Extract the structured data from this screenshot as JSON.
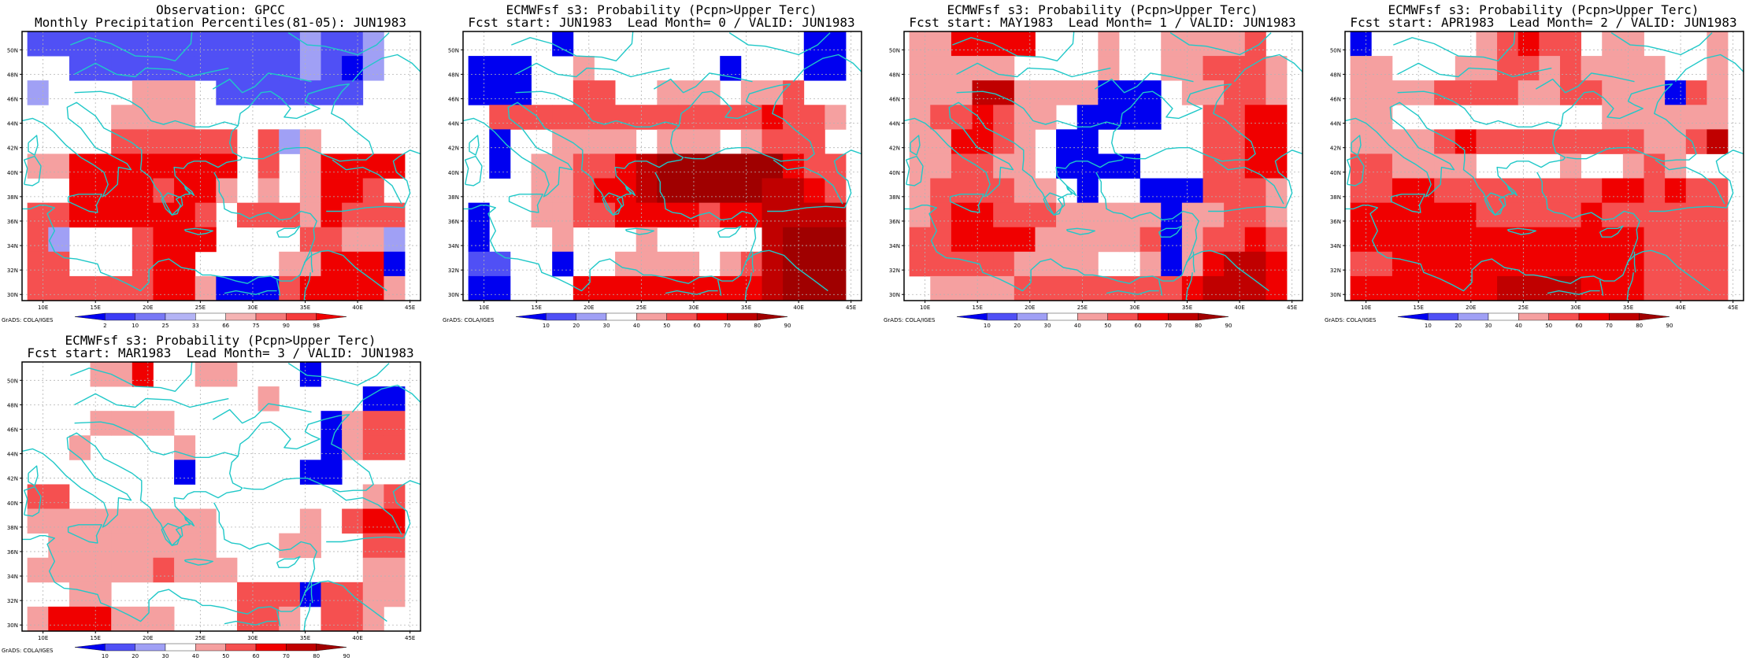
{
  "common": {
    "lat_labels": [
      "50N",
      "48N",
      "46N",
      "44N",
      "42N",
      "40N",
      "38N",
      "36N",
      "34N",
      "32N",
      "30N"
    ],
    "lon_labels": [
      "10E",
      "15E",
      "20E",
      "25E",
      "30E",
      "35E",
      "40E",
      "45E"
    ],
    "credit": "GrADS: COLA/IGES",
    "colors": {
      "w": "#ffffff",
      "b1": "#0000f0",
      "b2": "#5050f5",
      "b3": "#a0a0f5",
      "r1": "#f5a0a0",
      "r2": "#f55050",
      "r3": "#f00000",
      "r4": "#c00000",
      "r5": "#a00000",
      "coast": "#20c8c8"
    },
    "obs_scale": {
      "labels": [
        "2",
        "10",
        "25",
        "33",
        "66",
        "75",
        "90",
        "98"
      ],
      "colors": [
        "#0000f0",
        "#3c3cf5",
        "#7878f5",
        "#b4b4f5",
        "#ffffff",
        "#f5b4b4",
        "#f57878",
        "#f53c3c",
        "#f00000"
      ]
    },
    "prob_scale": {
      "labels": [
        "10",
        "20",
        "30",
        "40",
        "50",
        "60",
        "70",
        "80",
        "90"
      ],
      "colors": [
        "#0000f0",
        "#5050f5",
        "#a0a0f5",
        "#ffffff",
        "#f5a0a0",
        "#f55050",
        "#f00000",
        "#c00000",
        "#a00000"
      ]
    }
  },
  "panels": [
    {
      "title1": "Observation: GPCC",
      "title2": "Monthly Precipitation Percentiles(81-05): JUN1983",
      "scale": "obs",
      "grid": [
        "b2 b2 b2 b2 b2 b2 b2 b2 b2 b2 b2 b2 b2 b3 b2 b2 b3 w",
        "w w b2 b2 b2 b2 b2 b2 b2 b2 b2 b2 b2 b3 b2 b1 b3 w",
        "b3 w w w w r1 r1 r1 w b2 b2 b2 b2 b2 b2 b2 w w",
        "w w w w r1 r1 r1 r1 w w w w w w w w w w",
        "w w w w r2 r2 r2 r2 r2 r2 w r2 b3 r1 w w w w",
        "r1 r1 r3 r3 r3 r3 r3 r3 r3 r3 w r2 w r1 r3 r3 r3 r3",
        "w w r3 r3 r3 r3 r2 r3 r3 r1 w r1 w r1 r3 r3 r2 w",
        "r2 r2 r3 r3 r3 r3 r3 r3 r2 w r2 r2 r2 r1 r3 r2 r2 r2",
        "r2 b3 w w w r2 r3 r3 r3 w w w w r2 r2 r1 r1 b3",
        "r2 r2 w w w r2 r3 r3 w w w w r1 r1 r3 r3 r3 b1",
        "r2 r2 r2 r2 r2 r2 r3 r3 r1 b1 b1 b1 r2 r3 r3 r3 r3 r1"
      ]
    },
    {
      "title1": "ECMWFsf s3: Probability (Pcpn>Upper Terc)",
      "title2": "Fcst start: JUN1983  Lead Month= 0 / VALID: JUN1983",
      "scale": "prob",
      "grid": [
        "w w w w b1 w w w w w w w w w w w b1 b1",
        "b1 b1 b1 w w r1 w w w w w w b1 w w w b1 b1",
        "b1 b1 b1 w w r2 r2 w w r1 r1 r1 w r1 r1 r2 w w",
        "w r2 r2 r2 r2 r2 r2 r2 r2 r2 r2 r2 r2 r2 r3 r2 r2 r1",
        "w b1 w w r1 r1 r1 r1 w r1 r1 r1 w r1 r2 r2 r2 w",
        "w b1 w r1 r1 r2 r2 r3 r4 r5 r5 r5 r5 r5 r5 r3 r2 r2",
        "w w w r1 r1 r2 r3 r3 r4 r5 r5 r5 r5 r5 r4 r4 r3 r2",
        "b1 w w r1 r1 r2 r2 r3 r3 r3 r3 r2 r3 r3 r4 r4 r4 r4",
        "b1 w w w r1 w w w r1 w w w w w r4 r5 r5 r5",
        "b2 b2 w w b1 w w r1 r1 r1 r1 w r1 r2 r4 r5 r5 r5",
        "b1 b1 w w w r3 r3 r3 r3 r3 r3 r3 r3 r3 r4 r5 r5 r5"
      ]
    },
    {
      "title1": "ECMWFsf s3: Probability (Pcpn>Upper Terc)",
      "title2": "Fcst start: MAY1983  Lead Month= 1 / VALID: JUN1983",
      "scale": "prob",
      "grid": [
        "r1 r1 r3 r3 r3 r3 w w w r1 w w r1 r1 r1 r1 r2 w",
        "r1 r1 r1 r1 r1 w w w w r1 w w r1 r1 r2 r2 r2 r1",
        "r1 r1 r1 r4 r4 r1 r1 r1 r1 b1 b1 b1 w r1 r1 r2 r2 r1",
        "r1 r2 r2 r3 r2 r1 r1 w b1 b1 b1 b1 w w r2 r2 r3 r3",
        "r1 r1 r3 r3 r2 r1 w b1 b1 w w w w w r2 r2 r3 r3",
        "r1 r1 r2 r2 r1 r1 w b1 b1 b1 b1 w w w r2 r2 r3 r3",
        "r1 r2 r2 r2 r2 r1 r1 w b1 w w b1 b1 b1 r2 r2 r2 r1",
        "r1 r2 r3 r3 r2 r2 r2 r1 r1 r1 r1 r1 b1 r1 r1 r2 r2 r1",
        "r2 r2 r3 r3 r3 r3 r1 r1 r1 r1 r1 r2 b1 r1 r2 r2 r3 r2",
        "r2 r2 r2 r2 r2 r1 r1 r1 r1 w w r1 b1 r1 r3 r4 r4 r3",
        "w r1 r1 r1 r1 r2 r2 r2 r2 r2 r2 r2 r2 r3 r4 r4 r4 r3"
      ]
    },
    {
      "title1": "ECMWFsf s3: Probability (Pcpn>Upper Terc)",
      "title2": "Fcst start: APR1983  Lead Month= 2 / VALID: JUN1983",
      "scale": "prob",
      "grid": [
        "b1 w w w w w r1 r2 r3 r2 r2 w r1 r1 w w w r1",
        "r1 r1 w w w r1 r1 r2 r2 r1 r2 r1 r1 r1 r1 w w r1",
        "r1 r1 r1 r1 r2 r2 r2 r2 r1 r1 r2 r2 r1 r1 r1 b1 r2 r1",
        "r1 r1 w w w w w w w w w w r1 r1 r1 r1 r1 r1",
        "r1 r1 r1 r1 r2 r3 r2 r2 r2 r2 r2 r2 r2 r2 r1 r1 r2 r4",
        "r2 r2 r1 r1 r1 r1 w w w w r1 w w r1 r2 r1 w w",
        "r2 r2 r3 r3 r2 r2 r2 r2 r2 r2 r2 r2 r3 r3 r2 r3 r2 r2",
        "r3 r3 r3 r3 r3 r3 r2 r2 r2 r2 r2 r3 r2 r2 r2 r2 r2 r2",
        "r3 r3 r3 r3 r3 r3 r3 r3 r3 r3 r3 r3 r3 r3 r2 r2 r2 r2",
        "r2 r2 r3 r3 r3 r3 r3 r3 r3 r3 r3 r3 r3 r3 r2 r2 r2 r2",
        "r3 r3 r3 r3 r3 r3 r3 r4 r4 r4 r4 r3 r3 r3 r2 r2 r2 r2"
      ]
    },
    {
      "title1": "ECMWFsf s3: Probability (Pcpn>Upper Terc)",
      "title2": "Fcst start: MAR1983  Lead Month= 3 / VALID: JUN1983",
      "scale": "prob",
      "grid": [
        "w w w r1 r1 r3 w w r1 r1 w w w b1 w w w w",
        "w w w w w w w w w w w r1 w w w w b1 b1",
        "w w w r1 r1 r1 r1 w w w w w w w b1 r1 r2 r2",
        "w w r1 w w w w r1 w w w w w w b1 r1 r2 r2",
        "w w w w w w w b1 w w w w w b1 b1 w w w",
        "r2 r2 w w w w w w w w w w w w w w r1 r2",
        "r1 r1 r1 r1 r1 r1 r1 r1 r1 w w w w r1 w r2 r3 r3",
        "w r1 r1 r1 r1 r1 r1 r1 r1 w w w r1 r1 w w r2 r2",
        "r1 r1 r1 r1 r1 r1 r2 r1 r1 r1 w w w w w w r1 r1",
        "w w r1 r1 w w w w w w r2 r2 r2 b1 r2 r2 r1 r1",
        "r1 r3 r3 r3 r1 r1 r1 w w w r2 r2 r1 w r2 r2 r1 w"
      ]
    }
  ]
}
